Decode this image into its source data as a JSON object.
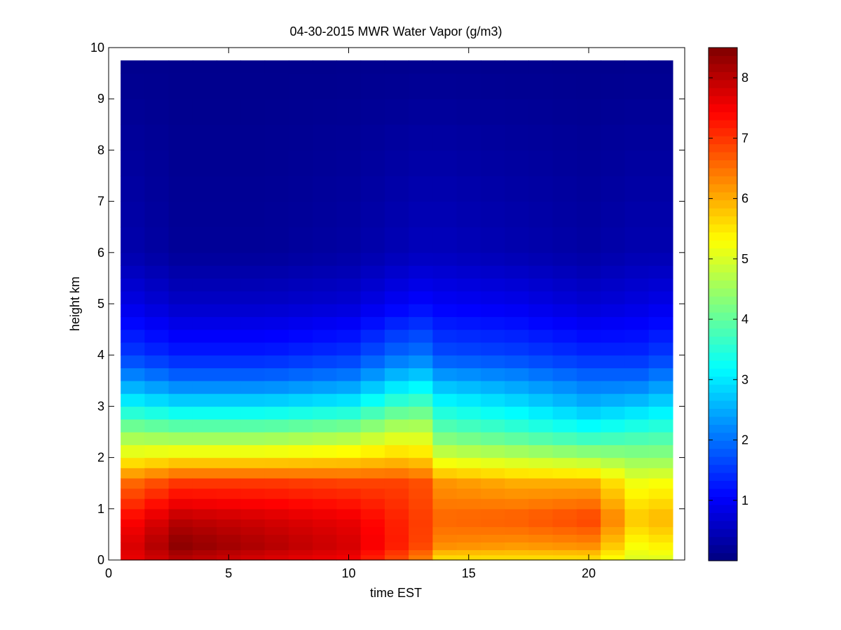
{
  "chart_data": {
    "type": "heatmap",
    "title": "04-30-2015 MWR Water Vapor (g/m3)",
    "xlabel": "time EST",
    "ylabel": "height km",
    "xlim": [
      0,
      24
    ],
    "ylim": [
      0,
      10
    ],
    "xticks": [
      0,
      5,
      10,
      15,
      20
    ],
    "yticks": [
      0,
      1,
      2,
      3,
      4,
      5,
      6,
      7,
      8,
      9,
      10
    ],
    "colorbar": {
      "colormap": "jet",
      "range": [
        0,
        8.5
      ],
      "ticks": [
        1,
        2,
        3,
        4,
        5,
        6,
        7,
        8
      ]
    },
    "grid": false,
    "x": [
      0.5,
      1.5,
      2.5,
      3.5,
      4.5,
      5.5,
      6.5,
      7.5,
      8.5,
      9.5,
      10.5,
      11.5,
      12.5,
      13.5,
      14.5,
      15.5,
      16.5,
      17.5,
      18.5,
      19.5,
      20.5,
      21.5,
      22.5,
      23.5
    ],
    "y": [
      0,
      0.1,
      0.2,
      0.35,
      0.5,
      0.65,
      0.8,
      1.0,
      1.2,
      1.4,
      1.6,
      1.8,
      2.0,
      2.25,
      2.5,
      2.75,
      3.0,
      3.25,
      3.5,
      3.75,
      4.0,
      4.25,
      4.5,
      4.75,
      5.0,
      5.25,
      5.5,
      5.75,
      6.0,
      6.5,
      7.0,
      7.5,
      8.0,
      8.5,
      9.0,
      9.5,
      9.75
    ],
    "profiles": [
      {
        "t": 0.5,
        "h": [
          0,
          0.3,
          0.8,
          1.5,
          2,
          2.5,
          3,
          3.5,
          4,
          5,
          6,
          10
        ],
        "v": [
          7.5,
          7.6,
          7.3,
          6.5,
          5.3,
          4.4,
          3.3,
          2.4,
          1.6,
          0.9,
          0.4,
          0.1
        ]
      },
      {
        "t": 3.0,
        "h": [
          0,
          0.3,
          0.8,
          1.5,
          2,
          2.5,
          3,
          3.5,
          4,
          5,
          6,
          10
        ],
        "v": [
          8.0,
          8.4,
          8.0,
          7.0,
          5.5,
          4.2,
          3.0,
          2.0,
          1.3,
          0.6,
          0.2,
          0.1
        ]
      },
      {
        "t": 6.5,
        "h": [
          0,
          0.3,
          0.8,
          1.5,
          2,
          2.5,
          3,
          3.5,
          4,
          5,
          6,
          10
        ],
        "v": [
          7.7,
          8.1,
          7.8,
          7.0,
          5.5,
          4.2,
          3.0,
          2.0,
          1.3,
          0.6,
          0.2,
          0.1
        ]
      },
      {
        "t": 10.0,
        "h": [
          0,
          0.3,
          0.8,
          1.5,
          2,
          2.5,
          3,
          3.5,
          4,
          5,
          6,
          10
        ],
        "v": [
          7.5,
          7.8,
          7.6,
          6.9,
          5.6,
          4.4,
          3.2,
          2.2,
          1.5,
          0.7,
          0.3,
          0.1
        ]
      },
      {
        "t": 12.8,
        "h": [
          0,
          0.3,
          0.8,
          1.5,
          2,
          2.5,
          3,
          3.5,
          4,
          5,
          6,
          10
        ],
        "v": [
          6.5,
          7.0,
          7.0,
          6.9,
          5.8,
          5.0,
          4.0,
          3.0,
          2.1,
          1.1,
          0.5,
          0.1
        ]
      },
      {
        "t": 14.0,
        "h": [
          0,
          0.3,
          0.8,
          1.5,
          2,
          2.5,
          3,
          3.5,
          4,
          5,
          6,
          10
        ],
        "v": [
          5.5,
          6.3,
          6.6,
          6.2,
          5.0,
          4.0,
          3.3,
          2.5,
          1.7,
          1.0,
          0.5,
          0.1
        ]
      },
      {
        "t": 17.0,
        "h": [
          0,
          0.3,
          0.8,
          1.5,
          2,
          2.5,
          3,
          3.5,
          4,
          5,
          6,
          10
        ],
        "v": [
          5.5,
          6.2,
          6.7,
          6.0,
          4.8,
          3.7,
          3.0,
          2.3,
          1.6,
          0.9,
          0.4,
          0.1
        ]
      },
      {
        "t": 20.0,
        "h": [
          0,
          0.3,
          0.8,
          1.5,
          2,
          2.5,
          3,
          3.5,
          4,
          5,
          6,
          10
        ],
        "v": [
          5.5,
          6.3,
          6.9,
          6.0,
          4.6,
          3.4,
          2.6,
          2.0,
          1.4,
          0.7,
          0.3,
          0.1
        ]
      },
      {
        "t": 22.0,
        "h": [
          0,
          0.3,
          0.8,
          1.5,
          2,
          2.5,
          3,
          3.5,
          4,
          5,
          6,
          10
        ],
        "v": [
          5.0,
          5.3,
          5.8,
          5.2,
          4.4,
          3.6,
          2.8,
          2.0,
          1.4,
          0.8,
          0.4,
          0.1
        ]
      },
      {
        "t": 23.5,
        "h": [
          0,
          0.3,
          0.8,
          1.5,
          2,
          2.5,
          3,
          3.5,
          4,
          5,
          6,
          10
        ],
        "v": [
          5.0,
          5.5,
          6.0,
          5.3,
          4.4,
          3.7,
          3.0,
          2.3,
          1.6,
          0.9,
          0.4,
          0.1
        ]
      }
    ]
  }
}
